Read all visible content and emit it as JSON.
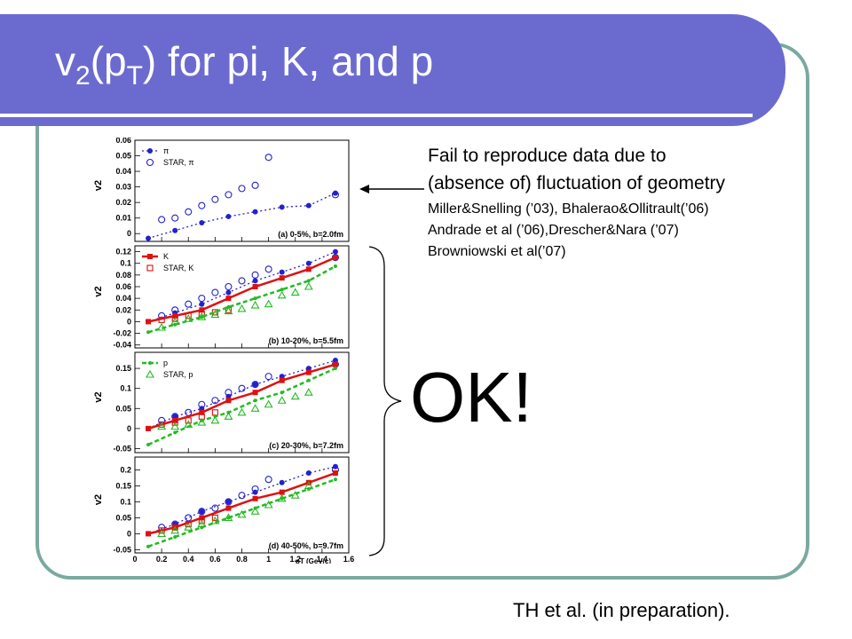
{
  "title": {
    "prefix": "v",
    "sub1": "2",
    "mid": "(p",
    "sub2": "T",
    "suffix": ") for pi, K, and p"
  },
  "description": [
    "Fail to reproduce data due to",
    "(absence of) fluctuation of geometry"
  ],
  "references": [
    "Miller&Snelling (’03), Bhalerao&Ollitrault(’06)",
    "Andrade et al (’06),Drescher&Nara (’07)",
    "Browniowski et al(’07)"
  ],
  "ok_label": "OK!",
  "footer": "TH et al. (in preparation).",
  "colors": {
    "banner": "#6b6bcf",
    "frame": "#7aa9a0",
    "pion": "#2222cc",
    "kaon": "#dd1111",
    "proton": "#22bb22"
  },
  "chart_data": [
    {
      "type": "scatter",
      "panel_label": "(a) 0-5%, b=2.0fm",
      "ylabel": "v2",
      "ylim": [
        -0.005,
        0.06
      ],
      "yticks": [
        "0",
        "0.01",
        "0.02",
        "0.03",
        "0.04",
        "0.05",
        "0.06"
      ],
      "legend": [
        "π",
        "STAR, π"
      ],
      "series": [
        {
          "name": "π",
          "kind": "pion-model",
          "x": [
            0.1,
            0.3,
            0.5,
            0.7,
            0.9,
            1.1,
            1.3,
            1.5
          ],
          "y": [
            -0.003,
            0.002,
            0.007,
            0.011,
            0.014,
            0.017,
            0.018,
            0.026
          ]
        },
        {
          "name": "STAR, π",
          "kind": "pion-data",
          "x": [
            0.2,
            0.3,
            0.4,
            0.5,
            0.6,
            0.7,
            0.8,
            0.9,
            1.0,
            1.5
          ],
          "y": [
            0.009,
            0.01,
            0.014,
            0.018,
            0.022,
            0.025,
            0.029,
            0.031,
            0.049,
            0.025
          ]
        }
      ]
    },
    {
      "type": "scatter",
      "panel_label": "(b) 10-20%, b=5.5fm",
      "ylabel": "v2",
      "ylim": [
        -0.045,
        0.13
      ],
      "yticks": [
        "-0.04",
        "-0.02",
        "0",
        "0.02",
        "0.04",
        "0.06",
        "0.08",
        "0.1",
        "0.12"
      ],
      "legend": [
        "K",
        "STAR, K"
      ],
      "series": [
        {
          "name": "",
          "kind": "pion-model",
          "x": [
            0.1,
            0.3,
            0.5,
            0.7,
            0.9,
            1.1,
            1.3,
            1.5
          ],
          "y": [
            0.0,
            0.015,
            0.03,
            0.05,
            0.07,
            0.085,
            0.1,
            0.12
          ]
        },
        {
          "name": "",
          "kind": "pion-data",
          "x": [
            0.2,
            0.3,
            0.4,
            0.5,
            0.6,
            0.7,
            0.8,
            0.9,
            1.0,
            1.5
          ],
          "y": [
            0.01,
            0.02,
            0.03,
            0.04,
            0.05,
            0.06,
            0.07,
            0.08,
            0.09,
            0.11
          ]
        },
        {
          "name": "K",
          "kind": "kaon-model",
          "x": [
            0.1,
            0.3,
            0.5,
            0.7,
            0.9,
            1.1,
            1.3,
            1.5
          ],
          "y": [
            0.0,
            0.01,
            0.02,
            0.04,
            0.06,
            0.075,
            0.09,
            0.11
          ]
        },
        {
          "name": "STAR, K",
          "kind": "kaon-data",
          "x": [
            0.2,
            0.3,
            0.4,
            0.5,
            0.6,
            0.7
          ],
          "y": [
            0.003,
            0.005,
            0.01,
            0.013,
            0.016,
            0.02
          ]
        },
        {
          "name": "",
          "kind": "proton-model",
          "x": [
            0.1,
            0.3,
            0.5,
            0.7,
            0.9,
            1.1,
            1.3,
            1.5
          ],
          "y": [
            -0.018,
            -0.005,
            0.008,
            0.025,
            0.04,
            0.055,
            0.07,
            0.095
          ]
        },
        {
          "name": "",
          "kind": "proton-data",
          "x": [
            0.2,
            0.3,
            0.4,
            0.5,
            0.6,
            0.7,
            0.8,
            0.9,
            1.0,
            1.1,
            1.2,
            1.3
          ],
          "y": [
            -0.01,
            0.0,
            0.005,
            0.008,
            0.012,
            0.018,
            0.022,
            0.028,
            0.03,
            0.045,
            0.05,
            0.06
          ]
        }
      ]
    },
    {
      "type": "scatter",
      "panel_label": "(c) 20-30%, b=7.2fm",
      "ylabel": "v2",
      "ylim": [
        -0.06,
        0.19
      ],
      "yticks": [
        "-0.05",
        "0",
        "0.05",
        "0.1",
        "0.15"
      ],
      "legend": [
        "p",
        "STAR, p"
      ],
      "series": [
        {
          "name": "",
          "kind": "pion-model",
          "x": [
            0.1,
            0.3,
            0.5,
            0.7,
            0.9,
            1.1,
            1.3,
            1.5
          ],
          "y": [
            0.0,
            0.03,
            0.05,
            0.08,
            0.11,
            0.13,
            0.15,
            0.17
          ]
        },
        {
          "name": "",
          "kind": "pion-data",
          "x": [
            0.2,
            0.3,
            0.4,
            0.5,
            0.6,
            0.7,
            0.8,
            0.9,
            1.0,
            1.5
          ],
          "y": [
            0.02,
            0.03,
            0.04,
            0.06,
            0.07,
            0.09,
            0.1,
            0.11,
            0.13,
            0.16
          ]
        },
        {
          "name": "",
          "kind": "kaon-model",
          "x": [
            0.1,
            0.3,
            0.5,
            0.7,
            0.9,
            1.1,
            1.3,
            1.5
          ],
          "y": [
            0.0,
            0.02,
            0.04,
            0.07,
            0.09,
            0.12,
            0.14,
            0.16
          ]
        },
        {
          "name": "",
          "kind": "kaon-data",
          "x": [
            0.2,
            0.3,
            0.4,
            0.5,
            0.6
          ],
          "y": [
            0.01,
            0.015,
            0.02,
            0.03,
            0.04
          ]
        },
        {
          "name": "p",
          "kind": "proton-model",
          "x": [
            0.1,
            0.3,
            0.5,
            0.7,
            0.9,
            1.1,
            1.3,
            1.5
          ],
          "y": [
            -0.04,
            -0.01,
            0.02,
            0.04,
            0.07,
            0.09,
            0.12,
            0.15
          ]
        },
        {
          "name": "STAR, p",
          "kind": "proton-data",
          "x": [
            0.2,
            0.3,
            0.4,
            0.5,
            0.6,
            0.7,
            0.8,
            0.9,
            1.0,
            1.1,
            1.2,
            1.3
          ],
          "y": [
            0.005,
            0.005,
            0.01,
            0.015,
            0.02,
            0.03,
            0.04,
            0.05,
            0.06,
            0.07,
            0.08,
            0.09
          ]
        }
      ]
    },
    {
      "type": "scatter",
      "panel_label": "(d) 40-50%, b=9.7fm",
      "ylabel": "v2",
      "ylim": [
        -0.06,
        0.24
      ],
      "yticks": [
        "-0.05",
        "0",
        "0.05",
        "0.1",
        "0.15",
        "0.2"
      ],
      "xlabel": "pT (GeV/c)",
      "xlim": [
        0,
        1.6
      ],
      "xticks": [
        "0",
        "0.2",
        "0.4",
        "0.6",
        "0.8",
        "1",
        "1.2",
        "1.4",
        "1.6"
      ],
      "series": [
        {
          "name": "",
          "kind": "pion-model",
          "x": [
            0.1,
            0.3,
            0.5,
            0.7,
            0.9,
            1.1,
            1.3,
            1.5
          ],
          "y": [
            0.0,
            0.03,
            0.07,
            0.1,
            0.13,
            0.16,
            0.19,
            0.21
          ]
        },
        {
          "name": "",
          "kind": "pion-data",
          "x": [
            0.2,
            0.3,
            0.4,
            0.5,
            0.6,
            0.7,
            0.8,
            0.9,
            1.0,
            1.5
          ],
          "y": [
            0.02,
            0.03,
            0.05,
            0.07,
            0.08,
            0.1,
            0.12,
            0.14,
            0.17,
            0.2
          ]
        },
        {
          "name": "",
          "kind": "kaon-model",
          "x": [
            0.1,
            0.3,
            0.5,
            0.7,
            0.9,
            1.1,
            1.3,
            1.5
          ],
          "y": [
            0.0,
            0.02,
            0.05,
            0.08,
            0.11,
            0.13,
            0.16,
            0.19
          ]
        },
        {
          "name": "",
          "kind": "kaon-data",
          "x": [
            0.2,
            0.3,
            0.4,
            0.5,
            0.6
          ],
          "y": [
            0.01,
            0.02,
            0.03,
            0.04,
            0.05
          ]
        },
        {
          "name": "",
          "kind": "proton-model",
          "x": [
            0.1,
            0.3,
            0.5,
            0.7,
            0.9,
            1.1,
            1.3,
            1.5
          ],
          "y": [
            -0.04,
            -0.01,
            0.02,
            0.05,
            0.08,
            0.11,
            0.14,
            0.17
          ]
        },
        {
          "name": "",
          "kind": "proton-data",
          "x": [
            0.2,
            0.3,
            0.4,
            0.5,
            0.6,
            0.7,
            0.8,
            0.9,
            1.0,
            1.1,
            1.2,
            1.3
          ],
          "y": [
            0.0,
            0.01,
            0.02,
            0.03,
            0.04,
            0.05,
            0.06,
            0.07,
            0.09,
            0.11,
            0.12,
            0.15
          ]
        }
      ]
    }
  ]
}
